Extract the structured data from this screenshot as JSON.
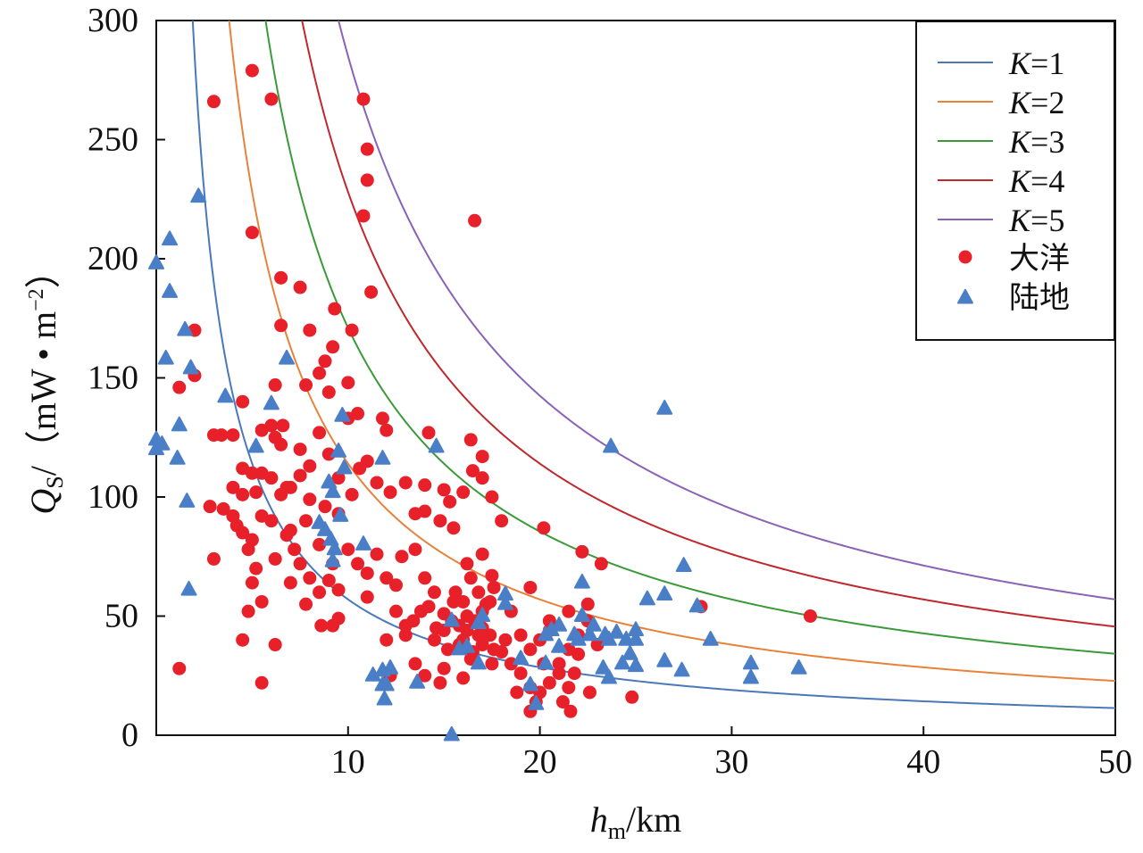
{
  "chart_data": {
    "type": "scatter",
    "xlabel": {
      "main": "h",
      "sub": "m",
      "unit": "/km"
    },
    "ylabel": {
      "main": "Q",
      "sub": "S",
      "unit_pre": "/（mW • m",
      "unit_sup": "−2",
      "unit_post": "）"
    },
    "xlim": [
      0,
      50
    ],
    "ylim": [
      0,
      300
    ],
    "x_ticks": [
      10,
      20,
      30,
      40,
      50
    ],
    "y_ticks": [
      0,
      50,
      100,
      150,
      200,
      250,
      300
    ],
    "grid": false,
    "legend_position": "top-right",
    "curves": [
      {
        "name": "K=1",
        "K_label": "K",
        "K_value": "1",
        "k": 1,
        "formula": "Q = 570*K/h",
        "color": "#4a78b8"
      },
      {
        "name": "K=2",
        "K_label": "K",
        "K_value": "2",
        "k": 2,
        "formula": "Q = 570*K/h",
        "color": "#e8823a"
      },
      {
        "name": "K=3",
        "K_label": "K",
        "K_value": "3",
        "k": 3,
        "formula": "Q = 570*K/h",
        "color": "#3a9a3a"
      },
      {
        "name": "K=4",
        "K_label": "K",
        "K_value": "4",
        "k": 4,
        "formula": "Q = 570*K/h",
        "color": "#c0282d"
      },
      {
        "name": "K=5",
        "K_label": "K",
        "K_value": "5",
        "k": 5,
        "formula": "Q = 570*K/h",
        "color": "#8a62b6"
      }
    ],
    "series": [
      {
        "name": "大洋",
        "marker": "circle",
        "color": "#e8202a",
        "points": [
          [
            3.0,
            266
          ],
          [
            5.0,
            279
          ],
          [
            6.0,
            267
          ],
          [
            10.8,
            267
          ],
          [
            11.0,
            246
          ],
          [
            11.0,
            233
          ],
          [
            10.8,
            218
          ],
          [
            16.6,
            216
          ],
          [
            5.0,
            211
          ],
          [
            11.2,
            186
          ],
          [
            2.0,
            170
          ],
          [
            1.2,
            146
          ],
          [
            2.0,
            151
          ],
          [
            6.5,
            192
          ],
          [
            7.5,
            188
          ],
          [
            9.3,
            179
          ],
          [
            8.0,
            170
          ],
          [
            10.2,
            170
          ],
          [
            6.5,
            172
          ],
          [
            9.2,
            163
          ],
          [
            8.8,
            157
          ],
          [
            8.5,
            152
          ],
          [
            7.8,
            147
          ],
          [
            10.0,
            148
          ],
          [
            6.2,
            147
          ],
          [
            9.0,
            144
          ],
          [
            3.0,
            126
          ],
          [
            3.4,
            126
          ],
          [
            4.0,
            126
          ],
          [
            4.5,
            140
          ],
          [
            5.5,
            128
          ],
          [
            6.0,
            130
          ],
          [
            6.6,
            130
          ],
          [
            6.5,
            122
          ],
          [
            6.2,
            125
          ],
          [
            7.5,
            120
          ],
          [
            8.0,
            113
          ],
          [
            8.5,
            127
          ],
          [
            9.0,
            118
          ],
          [
            9.5,
            108
          ],
          [
            10.0,
            133
          ],
          [
            10.5,
            135
          ],
          [
            11.8,
            133
          ],
          [
            12.0,
            128
          ],
          [
            11.0,
            115
          ],
          [
            5.5,
            110
          ],
          [
            6.0,
            108
          ],
          [
            4.5,
            112
          ],
          [
            5.0,
            110
          ],
          [
            6.8,
            104
          ],
          [
            4.0,
            104
          ],
          [
            4.5,
            101
          ],
          [
            5.2,
            102
          ],
          [
            6.5,
            101
          ],
          [
            7.0,
            104
          ],
          [
            7.5,
            109
          ],
          [
            8.0,
            99
          ],
          [
            8.8,
            96
          ],
          [
            9.5,
            93
          ],
          [
            10.2,
            101
          ],
          [
            10.6,
            112
          ],
          [
            11.5,
            106
          ],
          [
            12.2,
            102
          ],
          [
            13.0,
            106
          ],
          [
            14.0,
            105
          ],
          [
            15.0,
            103
          ],
          [
            16.0,
            102
          ],
          [
            16.5,
            111
          ],
          [
            17.0,
            108
          ],
          [
            17.5,
            100
          ],
          [
            16.4,
            124
          ],
          [
            17.0,
            117
          ],
          [
            14.2,
            127
          ],
          [
            15.3,
            98
          ],
          [
            14.8,
            90
          ],
          [
            15.5,
            87
          ],
          [
            14.0,
            94
          ],
          [
            13.5,
            93
          ],
          [
            2.8,
            96
          ],
          [
            3.5,
            95
          ],
          [
            4.2,
            88
          ],
          [
            5.5,
            92
          ],
          [
            6.0,
            90
          ],
          [
            7.0,
            86
          ],
          [
            7.8,
            90
          ],
          [
            8.5,
            80
          ],
          [
            9.2,
            72
          ],
          [
            10.0,
            78
          ],
          [
            11.0,
            68
          ],
          [
            12.5,
            63
          ],
          [
            14.0,
            66
          ],
          [
            14.5,
            60
          ],
          [
            15.5,
            56
          ],
          [
            16.2,
            72
          ],
          [
            17.0,
            76
          ],
          [
            17.5,
            67
          ],
          [
            18.0,
            90
          ],
          [
            20.2,
            87
          ],
          [
            22.2,
            77
          ],
          [
            23.2,
            72
          ],
          [
            4.5,
            85
          ],
          [
            5.0,
            82
          ],
          [
            4.8,
            78
          ],
          [
            5.2,
            70
          ],
          [
            6.8,
            84
          ],
          [
            7.2,
            78
          ],
          [
            7.5,
            72
          ],
          [
            8.0,
            66
          ],
          [
            8.5,
            60
          ],
          [
            9.0,
            65
          ],
          [
            9.5,
            61
          ],
          [
            10.5,
            72
          ],
          [
            11.5,
            76
          ],
          [
            12.0,
            66
          ],
          [
            12.8,
            75
          ],
          [
            13.5,
            78
          ],
          [
            4.0,
            92
          ],
          [
            6.2,
            74
          ],
          [
            7.0,
            64
          ],
          [
            7.8,
            55
          ],
          [
            5.0,
            64
          ],
          [
            5.5,
            56
          ],
          [
            4.8,
            52
          ],
          [
            6.2,
            38
          ],
          [
            5.5,
            22
          ],
          [
            4.5,
            40
          ],
          [
            3.0,
            74
          ],
          [
            1.2,
            28
          ],
          [
            8.6,
            46
          ],
          [
            9.2,
            46
          ],
          [
            9.5,
            49
          ],
          [
            11.0,
            58
          ],
          [
            12.0,
            40
          ],
          [
            12.5,
            52
          ],
          [
            13.0,
            46
          ],
          [
            13.4,
            48
          ],
          [
            13.8,
            52
          ],
          [
            14.2,
            54
          ],
          [
            14.6,
            45
          ],
          [
            15.0,
            51
          ],
          [
            15.4,
            48
          ],
          [
            15.8,
            46
          ],
          [
            16.2,
            50
          ],
          [
            16.6,
            48
          ],
          [
            17.0,
            52
          ],
          [
            17.4,
            56
          ],
          [
            15.0,
            44
          ],
          [
            16.0,
            40
          ],
          [
            17.0,
            38
          ],
          [
            18.0,
            35
          ],
          [
            18.5,
            30
          ],
          [
            16.5,
            35
          ],
          [
            17.5,
            30
          ],
          [
            13.5,
            30
          ],
          [
            14.0,
            25
          ],
          [
            15.0,
            28
          ],
          [
            16.0,
            24
          ],
          [
            14.8,
            22
          ],
          [
            16.4,
            32
          ],
          [
            12.2,
            25
          ],
          [
            13.0,
            42
          ],
          [
            14.5,
            40
          ],
          [
            15.2,
            36
          ],
          [
            16.8,
            42
          ],
          [
            17.6,
            36
          ],
          [
            18.2,
            40
          ],
          [
            19.0,
            42
          ],
          [
            19.5,
            36
          ],
          [
            20.0,
            40
          ],
          [
            20.5,
            44
          ],
          [
            21.0,
            30
          ],
          [
            21.5,
            36
          ],
          [
            22.0,
            42
          ],
          [
            22.5,
            48
          ],
          [
            23.0,
            38
          ],
          [
            19.5,
            62
          ],
          [
            18.5,
            52
          ],
          [
            20.5,
            48
          ],
          [
            21.5,
            52
          ],
          [
            22.0,
            34
          ],
          [
            22.5,
            55
          ],
          [
            19.0,
            26
          ],
          [
            19.5,
            20
          ],
          [
            20.0,
            18
          ],
          [
            20.5,
            22
          ],
          [
            21.0,
            26
          ],
          [
            21.5,
            20
          ],
          [
            20.2,
            30
          ],
          [
            21.8,
            26
          ],
          [
            19.8,
            14
          ],
          [
            21.2,
            14
          ],
          [
            21.6,
            10
          ],
          [
            18.8,
            18
          ],
          [
            19.5,
            10
          ],
          [
            22.6,
            18
          ],
          [
            24.8,
            16
          ],
          [
            28.4,
            54
          ],
          [
            34.1,
            50
          ],
          [
            17.2,
            55
          ],
          [
            16.8,
            60
          ],
          [
            17.6,
            62
          ],
          [
            16.0,
            56
          ],
          [
            15.6,
            60
          ],
          [
            16.4,
            66
          ],
          [
            17.0,
            45
          ],
          [
            16.2,
            44
          ],
          [
            17.4,
            42
          ],
          [
            15.8,
            38
          ]
        ]
      },
      {
        "name": "陆地",
        "marker": "triangle",
        "color": "#4a7fc8",
        "points": [
          [
            0.0,
            198
          ],
          [
            0.7,
            208
          ],
          [
            0.7,
            186
          ],
          [
            2.2,
            226
          ],
          [
            0.5,
            158
          ],
          [
            1.5,
            170
          ],
          [
            1.8,
            154
          ],
          [
            1.2,
            130
          ],
          [
            3.6,
            142
          ],
          [
            1.1,
            116
          ],
          [
            0.0,
            124
          ],
          [
            0.3,
            122
          ],
          [
            0.0,
            120
          ],
          [
            1.6,
            98
          ],
          [
            1.7,
            61
          ],
          [
            6.0,
            139
          ],
          [
            5.2,
            121
          ],
          [
            6.8,
            158
          ],
          [
            9.7,
            134
          ],
          [
            9.5,
            119
          ],
          [
            9.8,
            112
          ],
          [
            9.0,
            106
          ],
          [
            9.2,
            102
          ],
          [
            9.6,
            92
          ],
          [
            8.5,
            89
          ],
          [
            8.8,
            86
          ],
          [
            9.1,
            82
          ],
          [
            9.3,
            78
          ],
          [
            9.2,
            73
          ],
          [
            10.8,
            80
          ],
          [
            11.8,
            116
          ],
          [
            14.6,
            121
          ],
          [
            23.7,
            121
          ],
          [
            26.5,
            137
          ],
          [
            11.3,
            25
          ],
          [
            11.8,
            27
          ],
          [
            11.8,
            21
          ],
          [
            12.2,
            28
          ],
          [
            12.0,
            21
          ],
          [
            11.9,
            15
          ],
          [
            13.6,
            22
          ],
          [
            15.4,
            48
          ],
          [
            16.8,
            47
          ],
          [
            15.8,
            36
          ],
          [
            16.2,
            37
          ],
          [
            16.8,
            30
          ],
          [
            18.2,
            59
          ],
          [
            18.2,
            55
          ],
          [
            17.0,
            50
          ],
          [
            19.0,
            32
          ],
          [
            19.5,
            21
          ],
          [
            19.8,
            13
          ],
          [
            20.3,
            30
          ],
          [
            20.3,
            42
          ],
          [
            20.6,
            44
          ],
          [
            21.0,
            46
          ],
          [
            21.0,
            37
          ],
          [
            21.8,
            42
          ],
          [
            22.0,
            40
          ],
          [
            22.2,
            50
          ],
          [
            22.2,
            64
          ],
          [
            22.6,
            42
          ],
          [
            22.8,
            46
          ],
          [
            23.4,
            42
          ],
          [
            23.6,
            40
          ],
          [
            23.3,
            28
          ],
          [
            23.6,
            24
          ],
          [
            24.0,
            43
          ],
          [
            24.5,
            40
          ],
          [
            24.7,
            34
          ],
          [
            24.3,
            30
          ],
          [
            25.0,
            44
          ],
          [
            25.0,
            40
          ],
          [
            25.0,
            29
          ],
          [
            25.6,
            57
          ],
          [
            26.5,
            59
          ],
          [
            26.5,
            31
          ],
          [
            27.5,
            71
          ],
          [
            27.4,
            27
          ],
          [
            28.2,
            54
          ],
          [
            28.9,
            40
          ],
          [
            31.0,
            30
          ],
          [
            31.0,
            24
          ],
          [
            33.5,
            28
          ],
          [
            15.4,
            0
          ]
        ]
      }
    ]
  }
}
